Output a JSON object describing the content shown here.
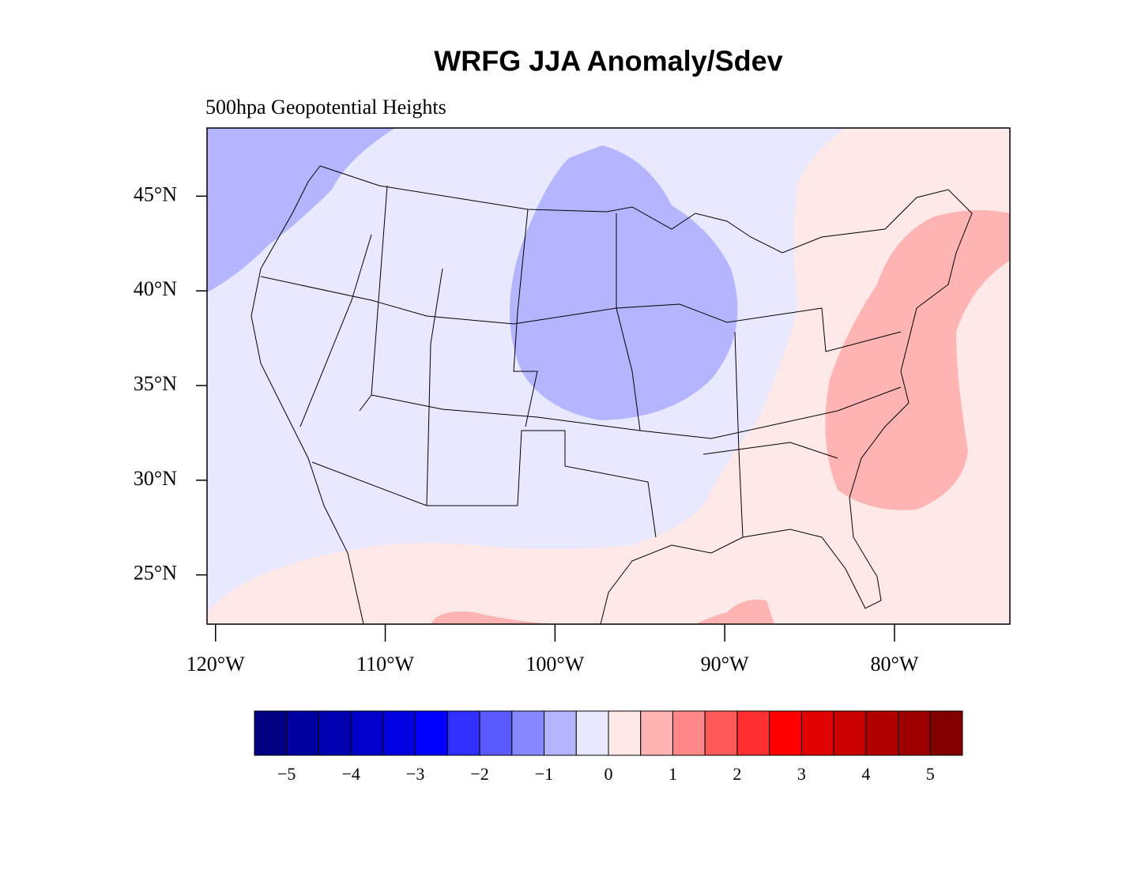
{
  "title": "WRFG JJA Anomaly/Sdev",
  "subtitle": "500hpa Geopotential Heights",
  "map": {
    "lonlim": [
      -120.5,
      -73.2
    ],
    "latlim": [
      22.4,
      48.6
    ],
    "lat_ticks": [
      {
        "value": 45,
        "label": "45°N"
      },
      {
        "value": 40,
        "label": "40°N"
      },
      {
        "value": 35,
        "label": "35°N"
      },
      {
        "value": 30,
        "label": "30°N"
      },
      {
        "value": 25,
        "label": "25°N"
      }
    ],
    "lon_ticks": [
      {
        "value": -120,
        "label": "120°W"
      },
      {
        "value": -110,
        "label": "110°W"
      },
      {
        "value": -100,
        "label": "100°W"
      },
      {
        "value": -90,
        "label": "90°W"
      },
      {
        "value": -80,
        "label": "80°W"
      }
    ]
  },
  "colorbar": {
    "colors": [
      "#000080",
      "#00009e",
      "#0000b0",
      "#0000c8",
      "#0000e0",
      "#0000ff",
      "#2f2fff",
      "#5a5aff",
      "#8787ff",
      "#b4b4ff",
      "#e8e8ff",
      "#ffe8e8",
      "#ffb4b4",
      "#ff8787",
      "#ff5a5a",
      "#ff2f2f",
      "#ff0000",
      "#e00000",
      "#c80000",
      "#b00000",
      "#9e0000",
      "#800000"
    ],
    "labels": [
      {
        "value": -5,
        "label": "−5"
      },
      {
        "value": -4,
        "label": "−4"
      },
      {
        "value": -3,
        "label": "−3"
      },
      {
        "value": -2,
        "label": "−2"
      },
      {
        "value": -1,
        "label": "−1"
      },
      {
        "value": 0,
        "label": "0"
      },
      {
        "value": 1,
        "label": "1"
      },
      {
        "value": 2,
        "label": "2"
      },
      {
        "value": 3,
        "label": "3"
      },
      {
        "value": 4,
        "label": "4"
      },
      {
        "value": 5,
        "label": "5"
      }
    ]
  }
}
